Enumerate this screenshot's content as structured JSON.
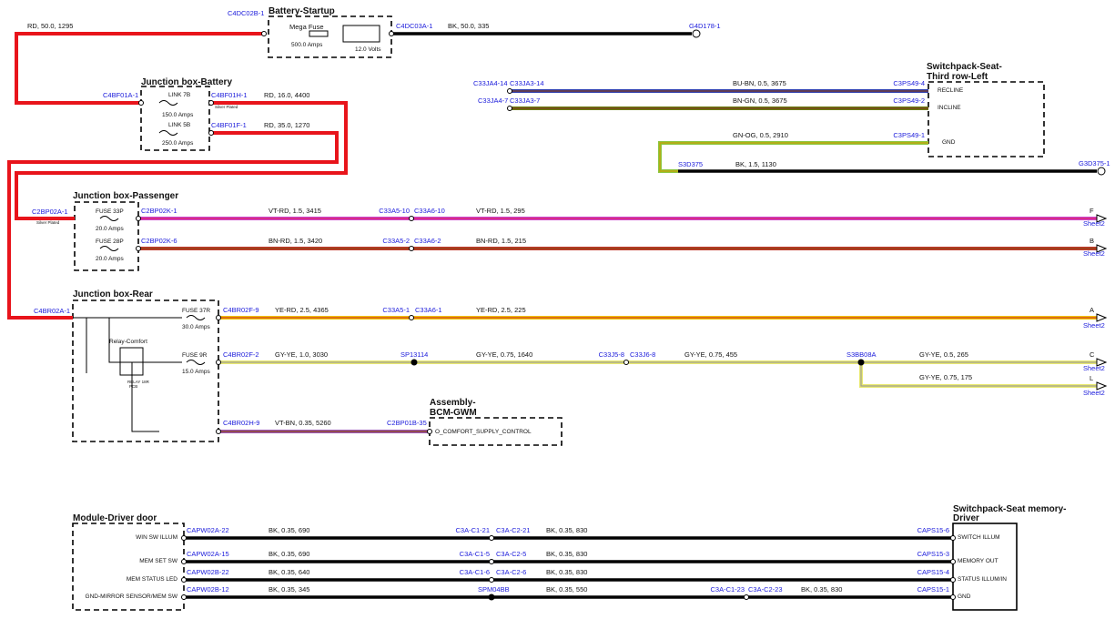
{
  "battery_startup": {
    "title": "Battery-Startup",
    "fuse": "Mega Fuse",
    "fuse_rating": "500.0 Amps",
    "voltage": "12.0 Volts",
    "input_connector": "C4DC02B-1",
    "output_connector": "C4DC03A-1"
  },
  "wires_top": {
    "input_wire": "RD, 50.0, 1295",
    "output_wire": "BK, 50.0, 335",
    "ground": "G4D178-1"
  },
  "junction_battery": {
    "title": "Junction box-Battery",
    "input_connector": "C4BF01A-1",
    "link_1": "LINK 7B",
    "link_1_rating": "150.0 Amps",
    "link_1_connector": "C4BF01H-1",
    "plating": "Silver Plated",
    "link_1_wire": "RD, 16.0, 4400",
    "link_2": "LINK 5B",
    "link_2_rating": "250.0 Amps",
    "link_2_connector": "C4BF01F-1",
    "link_2_wire": "RD, 35.0, 1270"
  },
  "switchpack_third_row": {
    "title_line_1": "Switchpack-Seat-",
    "title_line_2": "Third row-Left",
    "pins": [
      "RECLINE",
      "INCLINE",
      "GND"
    ],
    "connectors": [
      "C3PS49-4",
      "C3PS49-2",
      "C3PS49-1"
    ],
    "wires": [
      "BU-BN, 0.5, 3675",
      "BN-GN, 0.5, 3675",
      "GN-OG, 0.5, 2910"
    ],
    "inline_connectors": [
      "C33JA4-14",
      "C33JA3-14",
      "C33JA4-7",
      "C33JA3-7"
    ],
    "splice": "S3D375",
    "ground_wire": "BK, 1.5, 1130",
    "ground": "G3D375-1"
  },
  "junction_passenger": {
    "title": "Junction box-Passenger",
    "input_connector": "C2BP02A-1",
    "plating": "Silver Plated",
    "circuits": [
      {
        "fuse": "FUSE 33P",
        "rating": "20.0 Amps",
        "connector": "C2BP02K-1",
        "wire_1": "VT-RD, 1.5, 3415",
        "inline_1": "C33A5-10",
        "inline_2": "C33A6-10",
        "wire_2": "VT-RD, 1.5, 295",
        "ref": "F",
        "sheet": "Sheet2"
      },
      {
        "fuse": "FUSE 28P",
        "rating": "20.0 Amps",
        "connector": "C2BP02K-6",
        "wire_1": "BN-RD, 1.5, 3420",
        "inline_1": "C33A5-2",
        "inline_2": "C33A6-2",
        "wire_2": "BN-RD, 1.5, 215",
        "ref": "B",
        "sheet": "Sheet2"
      }
    ]
  },
  "junction_rear": {
    "title": "Junction box-Rear",
    "input_connector": "C4BR02A-1",
    "relay": "Relay-Comfort",
    "relay_id_1": "RELAY 18R",
    "relay_id_2": "PCB",
    "circuit_1": {
      "fuse": "FUSE 37R",
      "rating": "30.0 Amps",
      "connector": "C4BR02F-9",
      "wire_1": "YE-RD, 2.5, 4365",
      "inline_1": "C33A5-1",
      "inline_2": "C33A6-1",
      "wire_2": "YE-RD, 2.5, 225",
      "ref": "A",
      "sheet": "Sheet2"
    },
    "circuit_2": {
      "fuse": "FUSE 9R",
      "rating": "15.0 Amps",
      "connector": "C4BR02F-2",
      "wire_1": "GY-YE, 1.0, 3030",
      "splice": "SP13114",
      "wire_2": "GY-YE, 0.75, 1640",
      "inline_1": "C33J5-8",
      "inline_2": "C33J6-8",
      "wire_3": "GY-YE, 0.75, 455",
      "splice_2": "S3BB08A",
      "wire_4": "GY-YE, 0.5, 265",
      "ref": "C",
      "sheet": "Sheet2",
      "wire_5": "GY-YE, 0.75, 175",
      "ref_2": "L",
      "sheet_2": "Sheet2"
    },
    "relay_connector": "C4BR02H-9",
    "relay_wire": "VT-BN, 0.35, 5260"
  },
  "bcm": {
    "title_line_1": "Assembly-",
    "title_line_2": "BCM-GWM",
    "connector": "C2BP01B-35",
    "pin": "O_COMFORT_SUPPLY_CONTROL"
  },
  "driver_door": {
    "title": "Module-Driver door",
    "rows": [
      {
        "pin": "WIN SW ILLUM",
        "connector": "CAPW02A-22",
        "wire_1": "BK, 0.35, 690",
        "inline_1": "C3A-C1-21",
        "inline_2": "C3A-C2-21",
        "wire_2": "BK, 0.35, 830",
        "far_connector": "CAPS15-6",
        "far_pin": "SWITCH ILLUM"
      },
      {
        "pin": "MEM SET SW",
        "connector": "CAPW02A-15",
        "wire_1": "BK, 0.35, 690",
        "inline_1": "C3A-C1-5",
        "inline_2": "C3A-C2-5",
        "wire_2": "BK, 0.35, 830",
        "far_connector": "CAPS15-3",
        "far_pin": "MEMORY OUT"
      },
      {
        "pin": "MEM STATUS LED",
        "connector": "CAPW02B-22",
        "wire_1": "BK, 0.35, 640",
        "inline_1": "C3A-C1-6",
        "inline_2": "C3A-C2-6",
        "wire_2": "BK, 0.35, 830",
        "far_connector": "CAPS15-4",
        "far_pin": "STATUS ILLUM/IN"
      },
      {
        "pin": "GND-MIRROR SENSOR/MEM SW",
        "connector": "CAPW02B-12",
        "wire_1": "BK, 0.35, 345",
        "splice": "SPM04BB",
        "wire_2": "BK, 0.35, 550",
        "inline_1": "C3A-C1-23",
        "inline_2": "C3A-C2-23",
        "wire_3": "BK, 0.35, 830",
        "far_connector": "CAPS15-1",
        "far_pin": "GND"
      }
    ]
  },
  "switchpack_memory": {
    "title_line_1": "Switchpack-Seat memory-",
    "title_line_2": "Driver"
  }
}
